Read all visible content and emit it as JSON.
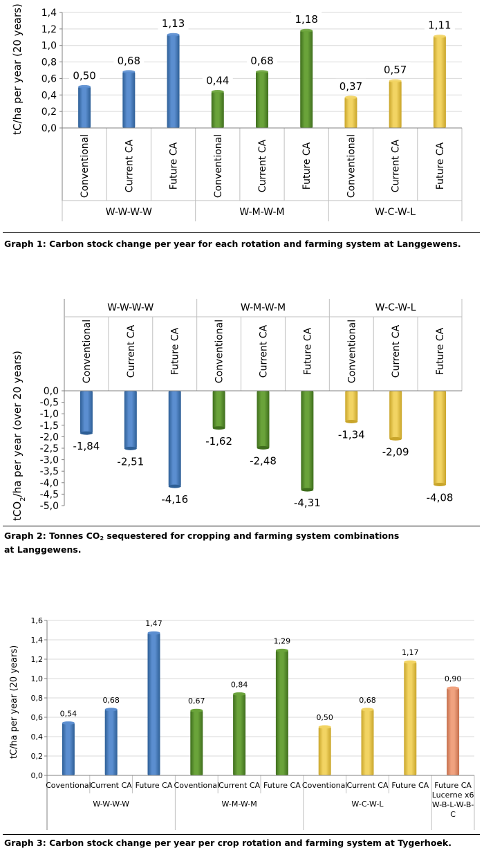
{
  "colors": {
    "blue": "#5b8ed0",
    "blue_dark": "#2e5f96",
    "green": "#6aa33a",
    "green_dark": "#3f6e1d",
    "yellow": "#f2d463",
    "yellow_dark": "#c9a52a",
    "orange": "#f0a27f",
    "orange_dark": "#c46f4c"
  },
  "captions": {
    "graph1": "Graph 1: Carbon stock change per year for each rotation and farming system at Langgewens.",
    "graph2_pre": "Graph 2: Tonnes CO",
    "graph2_sub": "2",
    "graph2_post": " sequestered for cropping and farming system combinations",
    "graph2_line2": "at Langgewens.",
    "graph3": "Graph 3: Carbon stock change per year per crop rotation and farming system at Tygerhoek."
  },
  "chart_data": [
    {
      "type": "bar",
      "ylabel": "tC/ha per year (20 years)",
      "ylim": [
        0,
        1.4
      ],
      "yticks": [
        "0,0",
        "0,2",
        "0,4",
        "0,6",
        "0,8",
        "1,0",
        "1,2",
        "1,4"
      ],
      "groups": [
        "W-W-W-W",
        "W-M-W-M",
        "W-C-W-L"
      ],
      "categories": [
        "Conventional",
        "Current CA",
        "Future CA",
        "Conventional",
        "Current CA",
        "Future CA",
        "Conventional",
        "Current CA",
        "Future CA"
      ],
      "values": [
        0.5,
        0.68,
        1.13,
        0.44,
        0.68,
        1.18,
        0.37,
        0.57,
        1.11
      ],
      "labels": [
        "0,50",
        "0,68",
        "1,13",
        "0,44",
        "0,68",
        "1,18",
        "0,37",
        "0,57",
        "1,11"
      ],
      "color_keys": [
        "blue",
        "blue",
        "blue",
        "green",
        "green",
        "green",
        "yellow",
        "yellow",
        "yellow"
      ]
    },
    {
      "type": "bar",
      "ylabel": "tCO2/ha per year (over 20 years)",
      "ylabel_pre": "tCO",
      "ylabel_sub": "2",
      "ylabel_post": "/ha per year (over 20 years)",
      "ylim": [
        -5.0,
        0.0
      ],
      "yticks": [
        "0,0",
        "-0,5",
        "-1,0",
        "-1,5",
        "-2,0",
        "-2,5",
        "-3,0",
        "-3,5",
        "-4,0",
        "-4,5",
        "-5,0"
      ],
      "groups": [
        "W-W-W-W",
        "W-M-W-M",
        "W-C-W-L"
      ],
      "categories": [
        "Conventional",
        "Current CA",
        "Future CA",
        "Conventional",
        "Current CA",
        "Future CA",
        "Conventional",
        "Current CA",
        "Future CA"
      ],
      "values": [
        -1.84,
        -2.51,
        -4.16,
        -1.62,
        -2.48,
        -4.31,
        -1.34,
        -2.09,
        -4.08
      ],
      "labels": [
        "-1,84",
        "-2,51",
        "-4,16",
        "-1,62",
        "-2,48",
        "-4,31",
        "-1,34",
        "-2,09",
        "-4,08"
      ],
      "color_keys": [
        "blue",
        "blue",
        "blue",
        "green",
        "green",
        "green",
        "yellow",
        "yellow",
        "yellow"
      ]
    },
    {
      "type": "bar",
      "ylabel": "tC/ha per year (20 years)",
      "ylim": [
        0,
        1.6
      ],
      "yticks": [
        "0,0",
        "0,2",
        "0,4",
        "0,6",
        "0,8",
        "1,0",
        "1,2",
        "1,4",
        "1,6"
      ],
      "groups": [
        "W-W-W-W",
        "W-M-W-M",
        "W-C-W-L",
        "Lucerne x6 W-B-L-W-B-C"
      ],
      "group_lines": [
        [
          "W-W-W-W"
        ],
        [
          "W-M-W-M"
        ],
        [
          "W-C-W-L"
        ],
        [
          "Lucerne x6",
          "W-B-L-W-B-",
          "C"
        ]
      ],
      "categories": [
        "Coventional",
        "Current CA",
        "Future CA",
        "Coventional",
        "Current CA",
        "Future CA",
        "Coventional",
        "Current CA",
        "Future CA",
        "Future CA"
      ],
      "values": [
        0.54,
        0.68,
        1.47,
        0.67,
        0.84,
        1.29,
        0.5,
        0.68,
        1.17,
        0.9
      ],
      "labels": [
        "0,54",
        "0,68",
        "1,47",
        "0,67",
        "0,84",
        "1,29",
        "0,50",
        "0,68",
        "1,17",
        "0,90"
      ],
      "color_keys": [
        "blue",
        "blue",
        "blue",
        "green",
        "green",
        "green",
        "yellow",
        "yellow",
        "yellow",
        "orange"
      ]
    }
  ]
}
